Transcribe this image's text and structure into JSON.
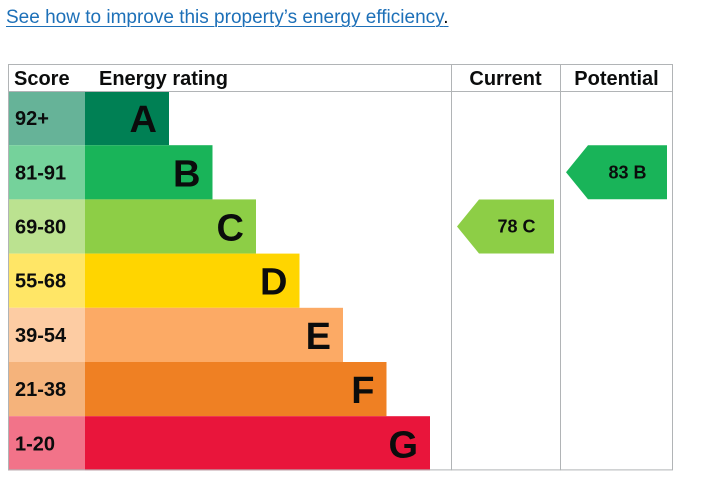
{
  "link": {
    "text": "See how to improve this property’s energy efficiency",
    "suffix": "."
  },
  "chart_data": {
    "type": "bar",
    "columns": {
      "score": "Score",
      "energy_rating": "Energy rating",
      "current": "Current",
      "potential": "Potential"
    },
    "bands": [
      {
        "letter": "A",
        "range": "92+",
        "color": "#008054",
        "score_color": "#66b398"
      },
      {
        "letter": "B",
        "range": "81-91",
        "color": "#19b459",
        "score_color": "#75d29b"
      },
      {
        "letter": "C",
        "range": "69-80",
        "color": "#8dce46",
        "score_color": "#bbe290"
      },
      {
        "letter": "D",
        "range": "55-68",
        "color": "#ffd500",
        "score_color": "#ffe666"
      },
      {
        "letter": "E",
        "range": "39-54",
        "color": "#fcaa65",
        "score_color": "#fdcca3"
      },
      {
        "letter": "F",
        "range": "21-38",
        "color": "#ef8023",
        "score_color": "#f5b37b"
      },
      {
        "letter": "G",
        "range": "1-20",
        "color": "#e9153b",
        "score_color": "#f27389"
      }
    ],
    "current": {
      "value": 78,
      "band": "C"
    },
    "potential": {
      "value": 83,
      "band": "B"
    }
  }
}
